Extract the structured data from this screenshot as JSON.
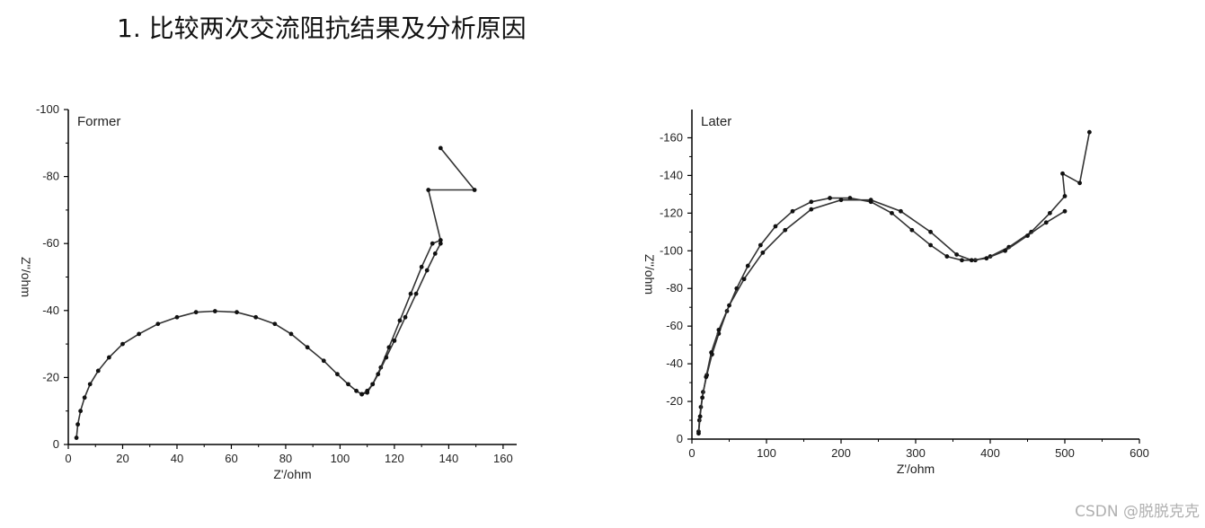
{
  "page": {
    "title": "1. 比较两次交流阻抗结果及分析原因",
    "watermark": "CSDN @脱脱克克"
  },
  "chart_data": [
    {
      "type": "line",
      "title": "Former",
      "xlabel": "Z'/ohm",
      "ylabel": "Z''/ohm",
      "xlim": [
        0,
        165
      ],
      "ylim": [
        0,
        -100
      ],
      "xticks": [
        0,
        20,
        40,
        60,
        80,
        100,
        120,
        140,
        160
      ],
      "yticks": [
        0,
        -20,
        -40,
        -60,
        -80,
        -100
      ],
      "grid": false,
      "legend": "none",
      "series": [
        {
          "x": [
            3,
            3.5,
            4.5,
            6,
            8,
            11,
            15,
            20,
            26,
            33,
            40,
            47,
            54,
            62,
            69,
            76,
            82,
            88,
            94,
            99,
            103,
            106,
            108,
            110,
            112,
            115,
            118,
            122,
            126,
            130,
            134,
            137,
            132.5,
            149.5,
            137
          ],
          "y": [
            -2,
            -6,
            -10,
            -14,
            -18,
            -22,
            -26,
            -30,
            -33,
            -36,
            -38,
            -39.5,
            -39.8,
            -39.5,
            -38,
            -36,
            -33,
            -29,
            -25,
            -21,
            -18,
            -16,
            -15,
            -15.5,
            -18,
            -23,
            -29,
            -37,
            -45,
            -53,
            -60,
            -61,
            -76,
            -76,
            -88.5
          ]
        },
        {
          "x": [
            108,
            110,
            112,
            114,
            117,
            120,
            124,
            128,
            132,
            135,
            137
          ],
          "y": [
            -15,
            -16,
            -18,
            -21,
            -26,
            -31,
            -38,
            -45,
            -52,
            -57,
            -60
          ]
        }
      ]
    },
    {
      "type": "line",
      "title": "Later",
      "xlabel": "Z'/ohm",
      "ylabel": "Z''/ohm",
      "xlim": [
        0,
        600
      ],
      "ylim": [
        0,
        -175
      ],
      "xticks": [
        0,
        100,
        200,
        300,
        400,
        500,
        600
      ],
      "yticks": [
        0,
        -20,
        -40,
        -60,
        -80,
        -100,
        -120,
        -140,
        -160
      ],
      "grid": false,
      "legend": "none",
      "series": [
        {
          "x": [
            9,
            10,
            12,
            15,
            20,
            27,
            36,
            47,
            60,
            75,
            92,
            112,
            135,
            160,
            185,
            212,
            240,
            268,
            295,
            320,
            342,
            362,
            380,
            400,
            425,
            455,
            480,
            500,
            497,
            520,
            533
          ],
          "y": [
            -4,
            -10,
            -17,
            -25,
            -34,
            -45,
            -56,
            -68,
            -80,
            -92,
            -103,
            -113,
            -121,
            -126,
            -128,
            -128,
            -126,
            -120,
            -111,
            -103,
            -97,
            -95,
            -95,
            -97,
            -102,
            -110,
            -120,
            -129,
            -141,
            -136,
            -163
          ]
        },
        {
          "x": [
            9,
            11,
            14,
            19,
            26,
            36,
            50,
            70,
            95,
            125,
            160,
            200,
            240,
            280,
            320,
            355,
            375,
            395,
            420,
            450,
            475,
            500
          ],
          "y": [
            -3,
            -12,
            -22,
            -33,
            -46,
            -58,
            -71,
            -85,
            -99,
            -111,
            -122,
            -127,
            -127,
            -121,
            -110,
            -98,
            -95,
            -96,
            -100,
            -108,
            -115,
            -121
          ]
        }
      ]
    }
  ]
}
